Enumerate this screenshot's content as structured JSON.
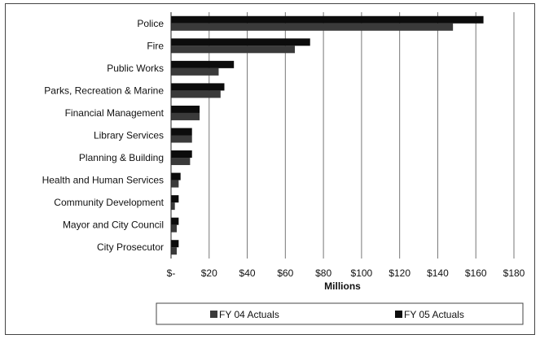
{
  "chart_data": {
    "type": "bar",
    "orientation": "horizontal",
    "categories": [
      "Police",
      "Fire",
      "Public Works",
      "Parks, Recreation & Marine",
      "Financial Management",
      "Library Services",
      "Planning & Building",
      "Health and Human Services",
      "Community Development",
      "Mayor and City Council",
      "City Prosecutor"
    ],
    "series": [
      {
        "name": "FY 04 Actuals",
        "color": "#3a3a3a",
        "values": [
          148,
          65,
          25,
          26,
          15,
          11,
          10,
          4,
          2,
          3,
          3
        ]
      },
      {
        "name": "FY 05 Actuals",
        "color": "#0c0c0c",
        "values": [
          164,
          73,
          33,
          28,
          15,
          11,
          11,
          5,
          4,
          4,
          4
        ]
      }
    ],
    "xlim": [
      0,
      180
    ],
    "x_ticks": [
      "$-",
      "$20",
      "$40",
      "$60",
      "$80",
      "$100",
      "$120",
      "$140",
      "$160",
      "$180"
    ],
    "xlabel": "Millions",
    "grid": "vertical",
    "legend_position": "bottom"
  }
}
